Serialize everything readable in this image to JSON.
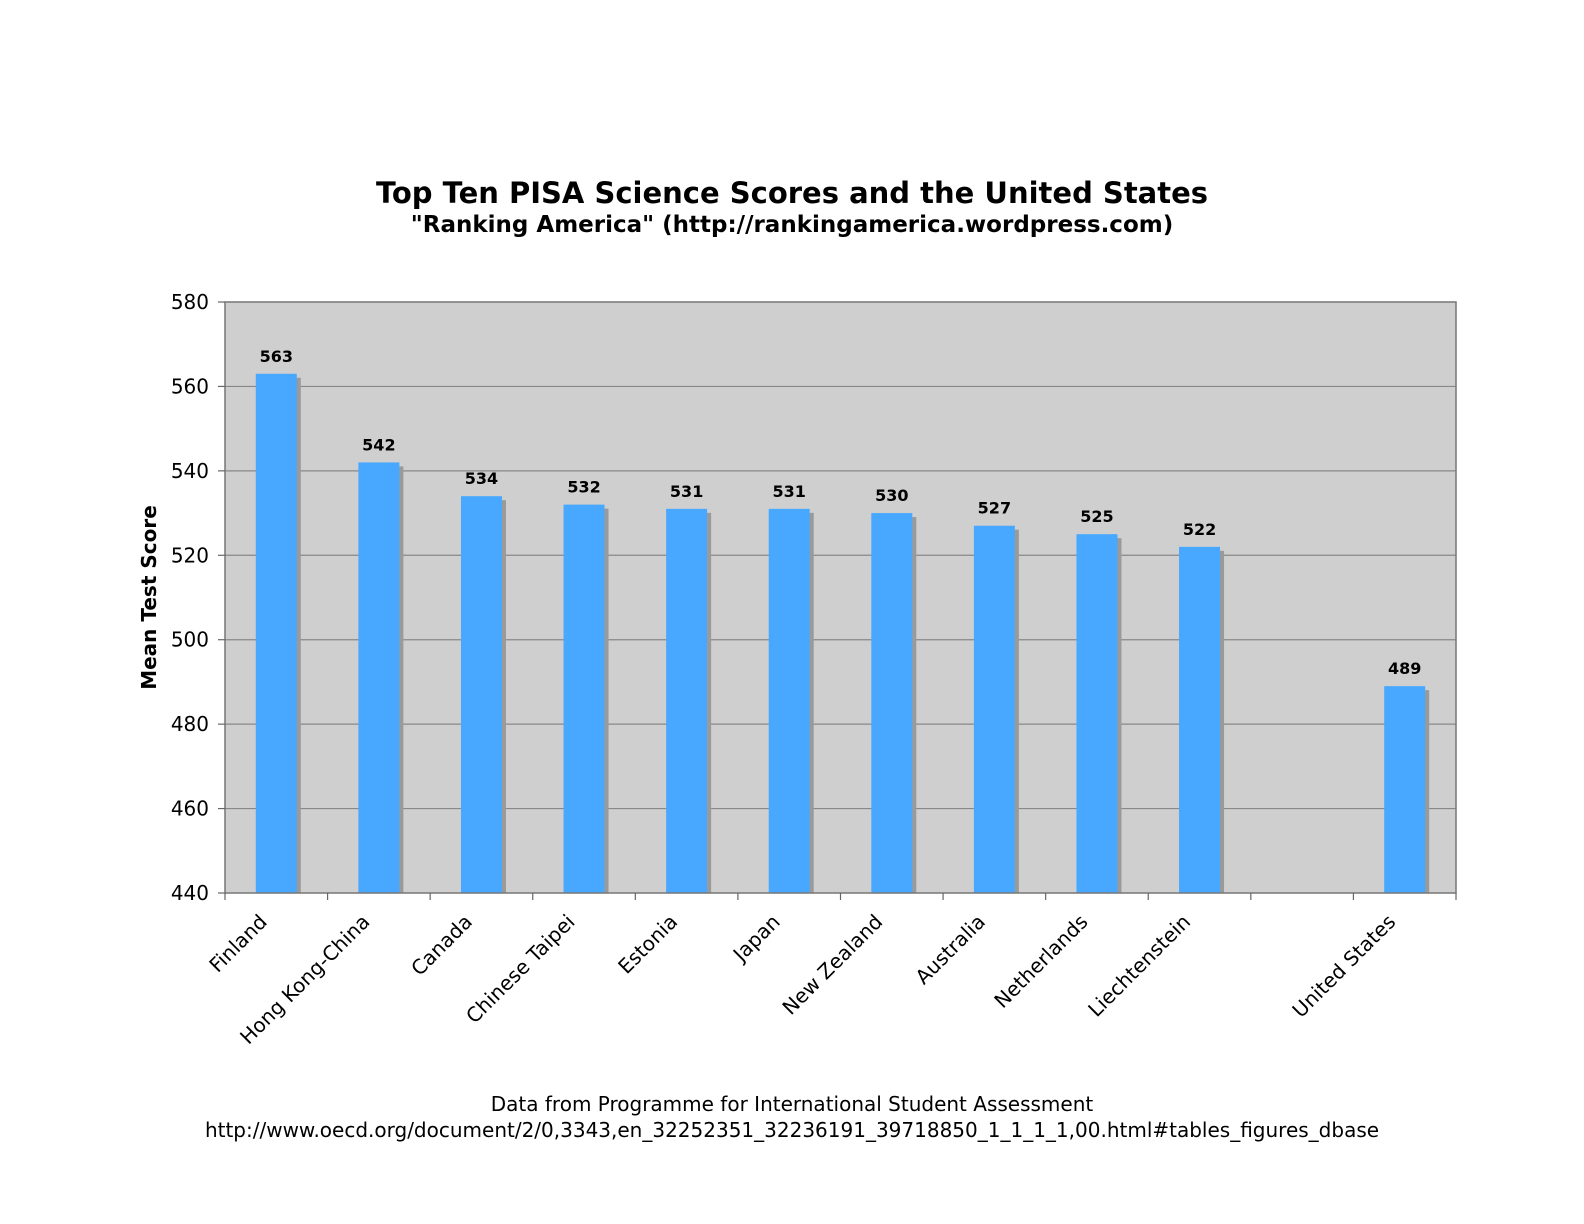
{
  "chart_data": {
    "type": "bar",
    "title": "Top Ten PISA Science Scores and the United States",
    "subtitle": "\"Ranking America\" (http://rankingamerica.wordpress.com)",
    "ylabel": "Mean Test Score",
    "xlabel": "",
    "ylim": [
      440,
      580
    ],
    "yticks": [
      "440",
      "460",
      "480",
      "500",
      "520",
      "540",
      "560",
      "580"
    ],
    "categories": [
      "Finland",
      "Hong Kong-China",
      "Canada",
      "Chinese Taipei",
      "Estonia",
      "Japan",
      "New Zealand",
      "Australia",
      "Netherlands",
      "Liechtenstein",
      "",
      "United States"
    ],
    "values": [
      563,
      542,
      534,
      532,
      531,
      531,
      530,
      527,
      525,
      522,
      null,
      489
    ],
    "data_labels": [
      "563",
      "542",
      "534",
      "532",
      "531",
      "531",
      "530",
      "527",
      "525",
      "522",
      "",
      "489"
    ],
    "grid": true,
    "legend": "none",
    "colors": {
      "bar": "#48a8ff",
      "shadow": "#9a9a9a",
      "plot_bg": "#cfcfcf",
      "grid": "#888888"
    }
  },
  "footer": {
    "line1": "Data from Programme for International Student Assessment",
    "line2": "http://www.oecd.org/document/2/0,3343,en_32252351_32236191_39718850_1_1_1_1,00.html#tables_figures_dbase"
  }
}
